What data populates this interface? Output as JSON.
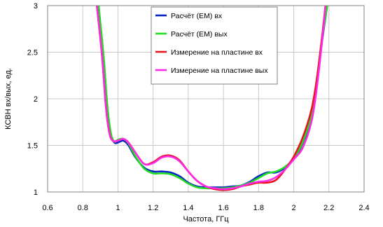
{
  "chart_data": {
    "type": "line",
    "xlabel": "Частота, ГГц",
    "ylabel": "КСВН вх/вых, ед.",
    "xlim": [
      0.6,
      2.4
    ],
    "ylim": [
      1,
      3
    ],
    "xticks": [
      "0.6",
      "0.8",
      "1",
      "1.2",
      "1.4",
      "1.6",
      "1.8",
      "2",
      "2.2",
      "2.4"
    ],
    "yticks": [
      "1",
      "1.5",
      "2",
      "2.5",
      "3"
    ],
    "grid": true,
    "legend_position": "top-right",
    "series": [
      {
        "name": "Расчёт (ЕМ) вх",
        "color": "#0a23c8",
        "points": [
          [
            0.89,
            3.0
          ],
          [
            0.92,
            2.4
          ],
          [
            0.94,
            1.9
          ],
          [
            0.96,
            1.62
          ],
          [
            0.98,
            1.53
          ],
          [
            1.0,
            1.53
          ],
          [
            1.03,
            1.55
          ],
          [
            1.06,
            1.5
          ],
          [
            1.1,
            1.37
          ],
          [
            1.15,
            1.26
          ],
          [
            1.2,
            1.22
          ],
          [
            1.25,
            1.22
          ],
          [
            1.3,
            1.21
          ],
          [
            1.35,
            1.17
          ],
          [
            1.4,
            1.1
          ],
          [
            1.45,
            1.06
          ],
          [
            1.5,
            1.05
          ],
          [
            1.55,
            1.05
          ],
          [
            1.6,
            1.05
          ],
          [
            1.65,
            1.06
          ],
          [
            1.7,
            1.07
          ],
          [
            1.75,
            1.11
          ],
          [
            1.8,
            1.17
          ],
          [
            1.85,
            1.21
          ],
          [
            1.9,
            1.21
          ],
          [
            1.95,
            1.26
          ],
          [
            2.0,
            1.35
          ],
          [
            2.05,
            1.52
          ],
          [
            2.1,
            1.8
          ],
          [
            2.13,
            2.15
          ],
          [
            2.16,
            2.6
          ],
          [
            2.19,
            3.0
          ]
        ]
      },
      {
        "name": "Расчёт (ЕМ) вых",
        "color": "#22dd22",
        "points": [
          [
            0.89,
            3.0
          ],
          [
            0.92,
            2.42
          ],
          [
            0.94,
            1.92
          ],
          [
            0.96,
            1.63
          ],
          [
            0.98,
            1.54
          ],
          [
            1.0,
            1.56
          ],
          [
            1.03,
            1.57
          ],
          [
            1.06,
            1.52
          ],
          [
            1.1,
            1.38
          ],
          [
            1.15,
            1.25
          ],
          [
            1.2,
            1.2
          ],
          [
            1.25,
            1.2
          ],
          [
            1.3,
            1.19
          ],
          [
            1.35,
            1.15
          ],
          [
            1.4,
            1.09
          ],
          [
            1.45,
            1.05
          ],
          [
            1.5,
            1.04
          ],
          [
            1.55,
            1.04
          ],
          [
            1.6,
            1.04
          ],
          [
            1.65,
            1.05
          ],
          [
            1.7,
            1.07
          ],
          [
            1.75,
            1.1
          ],
          [
            1.8,
            1.15
          ],
          [
            1.85,
            1.2
          ],
          [
            1.9,
            1.22
          ],
          [
            1.95,
            1.27
          ],
          [
            2.0,
            1.36
          ],
          [
            2.05,
            1.53
          ],
          [
            2.1,
            1.82
          ],
          [
            2.13,
            2.16
          ],
          [
            2.16,
            2.62
          ],
          [
            2.19,
            3.0
          ]
        ]
      },
      {
        "name": "Измерение на пластине вх",
        "color": "#e8141e",
        "points": [
          [
            0.88,
            3.0
          ],
          [
            0.91,
            2.45
          ],
          [
            0.93,
            1.95
          ],
          [
            0.95,
            1.65
          ],
          [
            0.97,
            1.55
          ],
          [
            1.0,
            1.55
          ],
          [
            1.03,
            1.57
          ],
          [
            1.06,
            1.53
          ],
          [
            1.1,
            1.42
          ],
          [
            1.15,
            1.3
          ],
          [
            1.2,
            1.32
          ],
          [
            1.25,
            1.38
          ],
          [
            1.3,
            1.39
          ],
          [
            1.35,
            1.34
          ],
          [
            1.4,
            1.22
          ],
          [
            1.45,
            1.12
          ],
          [
            1.5,
            1.06
          ],
          [
            1.55,
            1.03
          ],
          [
            1.6,
            1.02
          ],
          [
            1.65,
            1.03
          ],
          [
            1.7,
            1.06
          ],
          [
            1.75,
            1.08
          ],
          [
            1.8,
            1.1
          ],
          [
            1.85,
            1.1
          ],
          [
            1.9,
            1.13
          ],
          [
            1.95,
            1.24
          ],
          [
            2.0,
            1.38
          ],
          [
            2.05,
            1.58
          ],
          [
            2.1,
            1.88
          ],
          [
            2.13,
            2.2
          ],
          [
            2.16,
            2.65
          ],
          [
            2.18,
            3.0
          ]
        ]
      },
      {
        "name": "Измерение на пластине вых",
        "color": "#ff28e6",
        "points": [
          [
            0.88,
            3.0
          ],
          [
            0.91,
            2.45
          ],
          [
            0.93,
            1.94
          ],
          [
            0.95,
            1.64
          ],
          [
            0.97,
            1.55
          ],
          [
            1.0,
            1.55
          ],
          [
            1.03,
            1.57
          ],
          [
            1.06,
            1.53
          ],
          [
            1.1,
            1.42
          ],
          [
            1.15,
            1.3
          ],
          [
            1.2,
            1.31
          ],
          [
            1.25,
            1.37
          ],
          [
            1.3,
            1.38
          ],
          [
            1.35,
            1.33
          ],
          [
            1.4,
            1.22
          ],
          [
            1.45,
            1.12
          ],
          [
            1.5,
            1.06
          ],
          [
            1.55,
            1.04
          ],
          [
            1.6,
            1.03
          ],
          [
            1.65,
            1.04
          ],
          [
            1.7,
            1.06
          ],
          [
            1.75,
            1.09
          ],
          [
            1.8,
            1.11
          ],
          [
            1.85,
            1.12
          ],
          [
            1.9,
            1.16
          ],
          [
            1.95,
            1.24
          ],
          [
            2.0,
            1.35
          ],
          [
            2.05,
            1.47
          ],
          [
            2.1,
            1.75
          ],
          [
            2.13,
            2.1
          ],
          [
            2.16,
            2.6
          ],
          [
            2.18,
            3.0
          ]
        ]
      }
    ]
  }
}
